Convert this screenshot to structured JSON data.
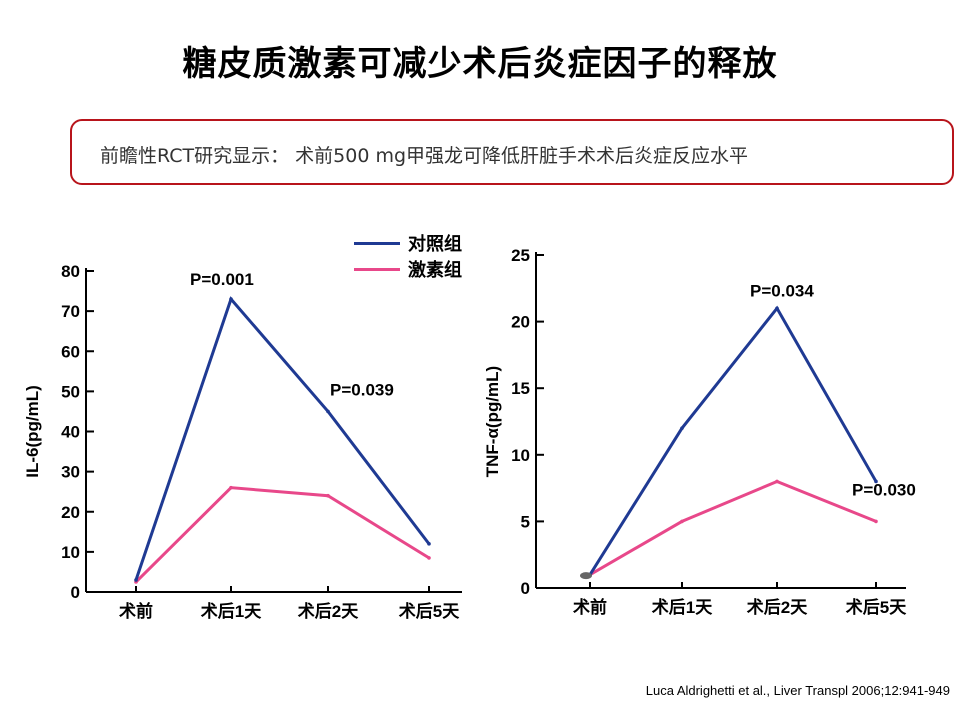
{
  "slide": {
    "title": "糖皮质激素可减少术后炎症因子的释放",
    "callout": "前瞻性RCT研究显示： 术前500 mg甲强龙可降低肝脏手术术后炎症反应水平",
    "citation": "Luca Aldrighetti et al., Liver Transpl 2006;12:941-949",
    "colors": {
      "control": "#1f3a93",
      "steroid": "#e8488a",
      "callout_border": "#b8141b"
    }
  },
  "legend": [
    {
      "name": "对照组",
      "color": "#1f3a93"
    },
    {
      "name": "激素组",
      "color": "#e8488a"
    }
  ],
  "chart_data": [
    {
      "type": "line",
      "title": "",
      "xlabel": "",
      "ylabel": "IL-6(pg/mL)",
      "categories": [
        "术前",
        "术后1天",
        "术后2天",
        "术后5天"
      ],
      "ylim": [
        0,
        80
      ],
      "yticks": [
        0,
        10,
        20,
        30,
        40,
        50,
        60,
        70,
        80
      ],
      "grid": false,
      "legend_position": "top-right",
      "series": [
        {
          "name": "对照组",
          "color": "#1f3a93",
          "values": [
            3,
            73,
            45,
            12
          ]
        },
        {
          "name": "激素组",
          "color": "#e8488a",
          "values": [
            2.5,
            26,
            24,
            8.5
          ]
        }
      ],
      "annotations": [
        {
          "text": "P=0.001",
          "category": "术后1天",
          "series": "对照组"
        },
        {
          "text": "P=0.039",
          "category": "术后2天",
          "series": "对照组"
        }
      ]
    },
    {
      "type": "line",
      "title": "",
      "xlabel": "",
      "ylabel": "TNF-α(pg/mL)",
      "categories": [
        "术前",
        "术后1天",
        "术后2天",
        "术后5天"
      ],
      "ylim": [
        0,
        25
      ],
      "yticks": [
        0,
        5,
        10,
        15,
        20,
        25
      ],
      "grid": false,
      "series": [
        {
          "name": "对照组",
          "color": "#1f3a93",
          "values": [
            1,
            12,
            21,
            8
          ]
        },
        {
          "name": "激素组",
          "color": "#e8488a",
          "values": [
            1,
            5,
            8,
            5
          ]
        }
      ],
      "annotations": [
        {
          "text": "P=0.034",
          "category": "术后2天",
          "series": "对照组"
        },
        {
          "text": "P=0.030",
          "category": "术后5天",
          "series": "对照组"
        }
      ]
    }
  ]
}
